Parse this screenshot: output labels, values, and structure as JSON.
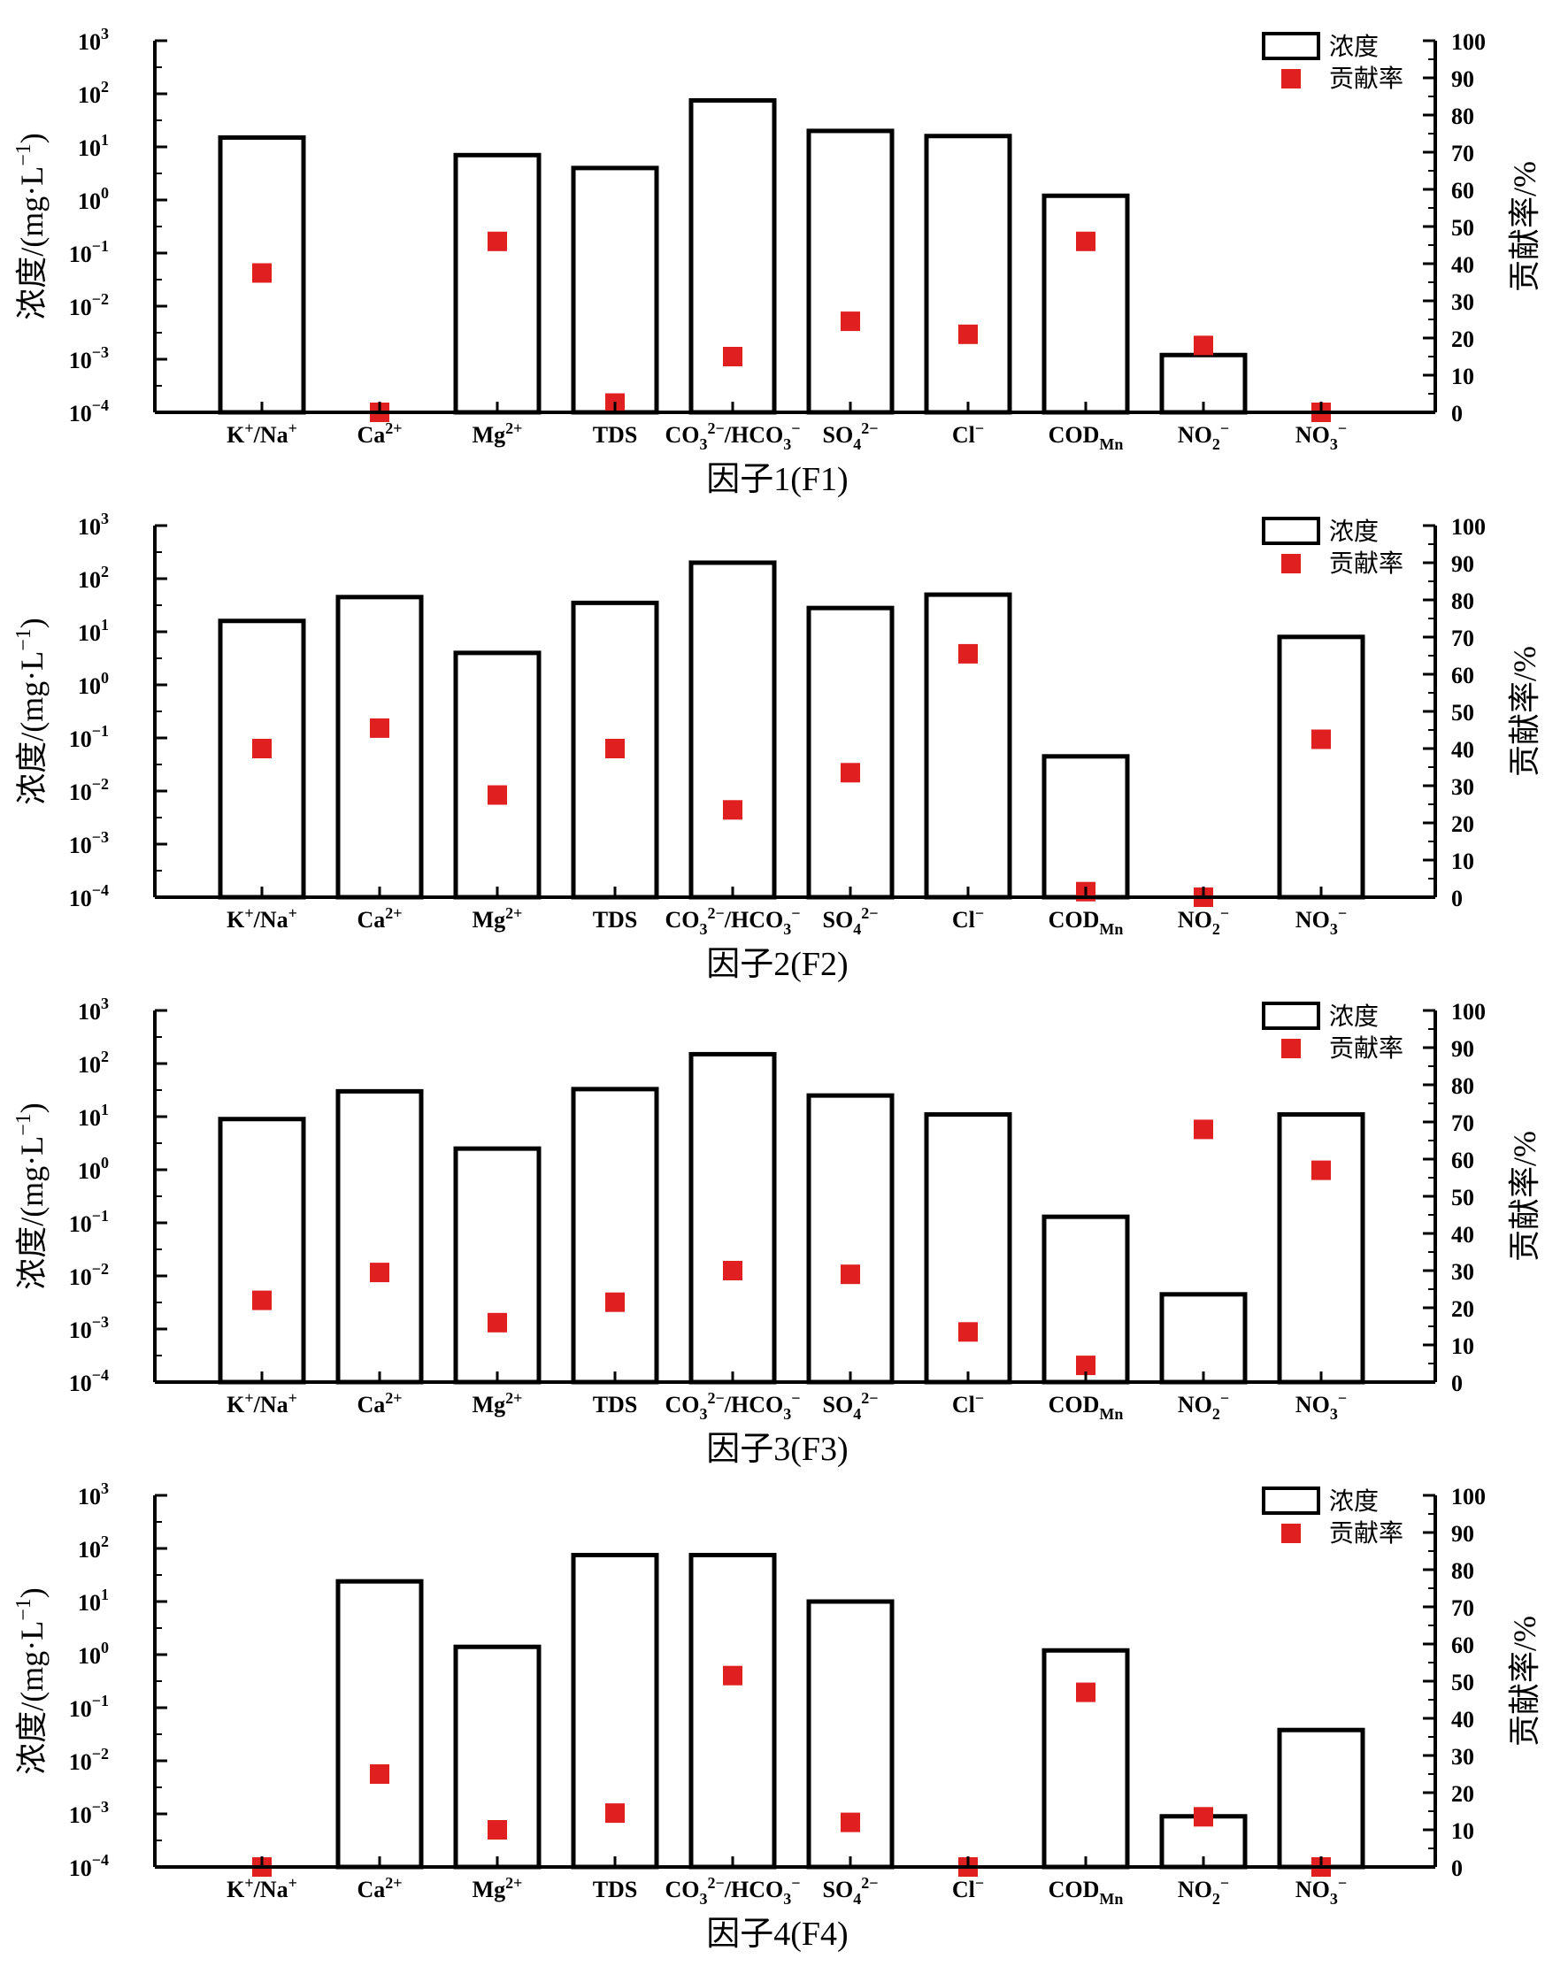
{
  "figure": {
    "legend": {
      "bar_label": "浓度",
      "marker_label": "贡献率"
    },
    "left_axis_label": "浓度/(mg·L−1)",
    "right_axis_label": "贡献率/%",
    "marker_color": "#e02020",
    "bar_edge_color": "#000000"
  },
  "chart_data": [
    {
      "type": "bar",
      "title": "因子1(F1)",
      "categories": [
        "K+/Na+",
        "Ca2+",
        "Mg2+",
        "TDS",
        "CO32−/HCO3−",
        "SO42−",
        "Cl−",
        "CODMn",
        "NO2−",
        "NO3−"
      ],
      "ylabel": "浓度/(mg·L−1)",
      "y2label": "贡献率/%",
      "yscale": "log",
      "ylim": [
        0.0001,
        1000
      ],
      "y2lim": [
        0,
        100
      ],
      "series": [
        {
          "name": "浓度",
          "kind": "bar",
          "values": [
            15,
            0.0001,
            7,
            4,
            75,
            20,
            16,
            1.2,
            0.0012,
            0.0001
          ]
        },
        {
          "name": "贡献率",
          "kind": "marker",
          "axis": "right",
          "values": [
            37.5,
            0,
            46,
            2.5,
            15,
            24.5,
            21,
            46,
            18,
            0
          ]
        }
      ]
    },
    {
      "type": "bar",
      "title": "因子2(F2)",
      "categories": [
        "K+/Na+",
        "Ca2+",
        "Mg2+",
        "TDS",
        "CO32−/HCO3−",
        "SO42−",
        "Cl−",
        "CODMn",
        "NO2−",
        "NO3−"
      ],
      "ylabel": "浓度/(mg·L−1)",
      "y2label": "贡献率/%",
      "yscale": "log",
      "ylim": [
        0.0001,
        1000
      ],
      "y2lim": [
        0,
        100
      ],
      "series": [
        {
          "name": "浓度",
          "kind": "bar",
          "values": [
            16,
            45,
            4,
            35,
            200,
            28,
            50,
            0.045,
            0.0001,
            8
          ]
        },
        {
          "name": "贡献率",
          "kind": "marker",
          "axis": "right",
          "values": [
            40,
            45.5,
            27.5,
            40,
            23.5,
            33.5,
            65.5,
            1.5,
            0,
            42.5
          ]
        }
      ]
    },
    {
      "type": "bar",
      "title": "因子3(F3)",
      "categories": [
        "K+/Na+",
        "Ca2+",
        "Mg2+",
        "TDS",
        "CO32−/HCO3−",
        "SO42−",
        "Cl−",
        "CODMn",
        "NO2−",
        "NO3−"
      ],
      "ylabel": "浓度/(mg·L−1)",
      "y2label": "贡献率/%",
      "yscale": "log",
      "ylim": [
        0.0001,
        1000
      ],
      "y2lim": [
        0,
        100
      ],
      "series": [
        {
          "name": "浓度",
          "kind": "bar",
          "values": [
            9,
            30,
            2.5,
            33,
            150,
            25,
            11,
            0.13,
            0.0045,
            11
          ]
        },
        {
          "name": "贡献率",
          "kind": "marker",
          "axis": "right",
          "values": [
            22,
            29.5,
            16,
            21.5,
            30,
            29,
            13.5,
            4.5,
            68,
            57
          ]
        }
      ]
    },
    {
      "type": "bar",
      "title": "因子4(F4)",
      "categories": [
        "K+/Na+",
        "Ca2+",
        "Mg2+",
        "TDS",
        "CO32−/HCO3−",
        "SO42−",
        "Cl−",
        "CODMn",
        "NO2−",
        "NO3−"
      ],
      "ylabel": "浓度/(mg·L−1)",
      "y2label": "贡献率/%",
      "yscale": "log",
      "ylim": [
        0.0001,
        1000
      ],
      "y2lim": [
        0,
        100
      ],
      "series": [
        {
          "name": "浓度",
          "kind": "bar",
          "values": [
            0.0001,
            24,
            1.4,
            75,
            75,
            10,
            0.0001,
            1.2,
            0.0009,
            0.038
          ]
        },
        {
          "name": "贡献率",
          "kind": "marker",
          "axis": "right",
          "values": [
            0,
            25,
            10,
            14.5,
            51.5,
            12,
            0,
            47,
            13.5,
            0
          ]
        }
      ]
    }
  ]
}
